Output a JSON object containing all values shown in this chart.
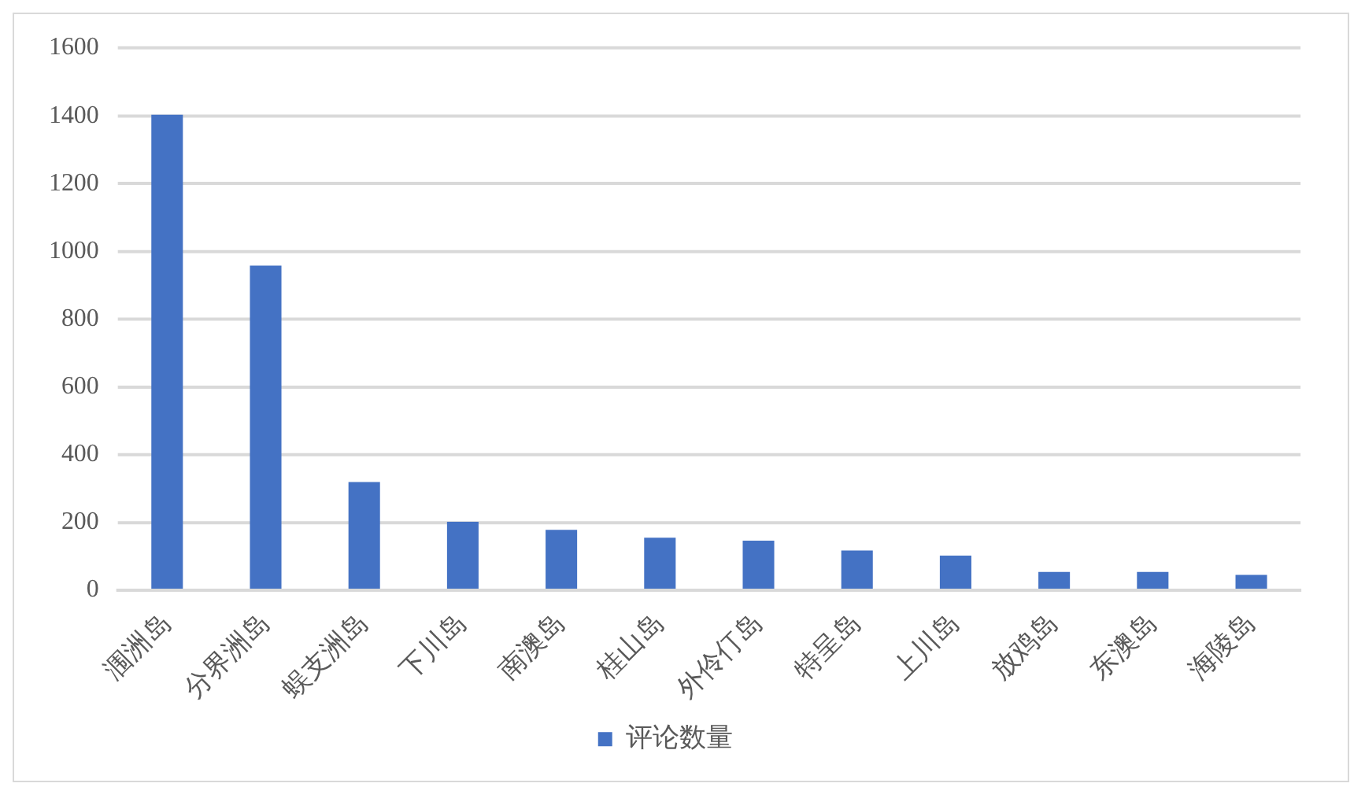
{
  "chart_data": {
    "type": "bar",
    "categories": [
      "涠洲岛",
      "分界洲岛",
      "蜈支洲岛",
      "下川岛",
      "南澳岛",
      "桂山岛",
      "外伶仃岛",
      "特呈岛",
      "上川岛",
      "放鸡岛",
      "东澳岛",
      "海陵岛"
    ],
    "series": [
      {
        "name": "评论数量",
        "color": "#4472c4",
        "values": [
          1403,
          958,
          319,
          202,
          178,
          155,
          146,
          117,
          102,
          54,
          54,
          45
        ]
      }
    ],
    "ylim": [
      0,
      1600
    ],
    "yticks": [
      0,
      200,
      400,
      600,
      800,
      1000,
      1200,
      1400,
      1600
    ],
    "grid": "y",
    "legend": "bottom"
  }
}
